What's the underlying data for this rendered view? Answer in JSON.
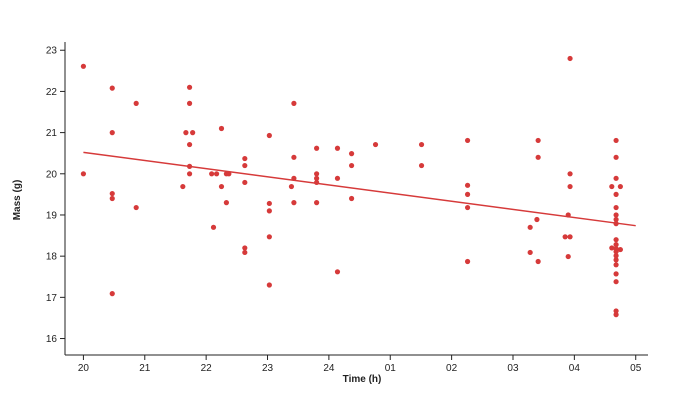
{
  "chart_data": {
    "type": "scatter",
    "x_label": "Time (h)",
    "y_label": "Mass (g)",
    "color": "#d63a3a",
    "x": [
      20,
      20,
      20.47,
      20.47,
      20.47,
      20.47,
      20.47,
      20.86,
      20.86,
      21.62,
      21.73,
      21.73,
      21.67,
      21.78,
      21.73,
      21.73,
      21.73,
      22.09,
      22.17,
      22.12,
      22.25,
      22.25,
      22.33,
      22.37,
      22.33,
      22.63,
      22.63,
      22.63,
      22.63,
      22.63,
      23.03,
      23.03,
      23.03,
      23.03,
      23.03,
      23.39,
      23.43,
      23.43,
      23.43,
      23.43,
      23.8,
      23.8,
      23.8,
      23.8,
      23.8,
      24.14,
      24.14,
      24.14,
      24.37,
      24.37,
      24.37,
      24.76,
      25.51,
      25.51,
      26.26,
      26.26,
      26.26,
      26.26,
      26.26,
      27.28,
      27.28,
      27.39,
      27.41,
      27.41,
      27.41,
      27.93,
      27.93,
      27.93,
      27.9,
      27.85,
      27.93,
      27.9,
      28.68,
      28.68,
      28.68,
      28.61,
      28.75,
      28.68,
      28.68,
      28.68,
      28.68,
      28.68,
      28.68,
      28.68,
      28.68,
      28.68,
      28.68,
      28.68,
      28.68,
      28.68,
      28.68,
      28.68,
      28.68,
      28.61,
      28.75
    ],
    "values": [
      22.61,
      20.0,
      22.08,
      21.0,
      19.52,
      19.4,
      17.09,
      21.71,
      19.18,
      19.69,
      22.1,
      21.71,
      21.0,
      21.0,
      20.71,
      20.18,
      20.0,
      20.0,
      20.0,
      18.7,
      21.1,
      19.69,
      20.0,
      20.0,
      19.3,
      20.37,
      20.2,
      19.79,
      18.2,
      18.09,
      20.93,
      19.28,
      19.1,
      18.47,
      17.3,
      19.69,
      21.71,
      20.4,
      19.89,
      19.3,
      20.62,
      20.0,
      19.89,
      19.79,
      19.3,
      20.62,
      19.89,
      17.62,
      20.49,
      20.2,
      19.4,
      20.71,
      20.71,
      20.2,
      20.81,
      19.72,
      19.5,
      19.18,
      17.87,
      18.7,
      18.09,
      18.89,
      20.81,
      20.4,
      17.87,
      22.8,
      20.0,
      19.69,
      19.0,
      18.47,
      18.47,
      17.99,
      20.81,
      20.4,
      19.89,
      19.69,
      19.69,
      19.5,
      19.18,
      19.0,
      18.89,
      18.79,
      18.4,
      18.28,
      18.18,
      18.11,
      18.01,
      17.91,
      17.79,
      17.57,
      17.38,
      16.67,
      16.58,
      18.2,
      18.16
    ],
    "trend": {
      "x": [
        20,
        29
      ],
      "values": [
        20.52,
        18.74
      ]
    },
    "xlim": [
      19.7,
      29.2
    ],
    "xticks": [
      20,
      21,
      22,
      23,
      24,
      {
        "value": 25,
        "label": "01"
      },
      {
        "value": 26,
        "label": "02"
      },
      {
        "value": 27,
        "label": "03"
      },
      {
        "value": 28,
        "label": "04"
      },
      {
        "value": 29,
        "label": "05"
      }
    ],
    "ylim": [
      15.6,
      23.2
    ],
    "yticks": [
      16,
      17,
      18,
      19,
      20,
      21,
      22,
      23
    ]
  }
}
